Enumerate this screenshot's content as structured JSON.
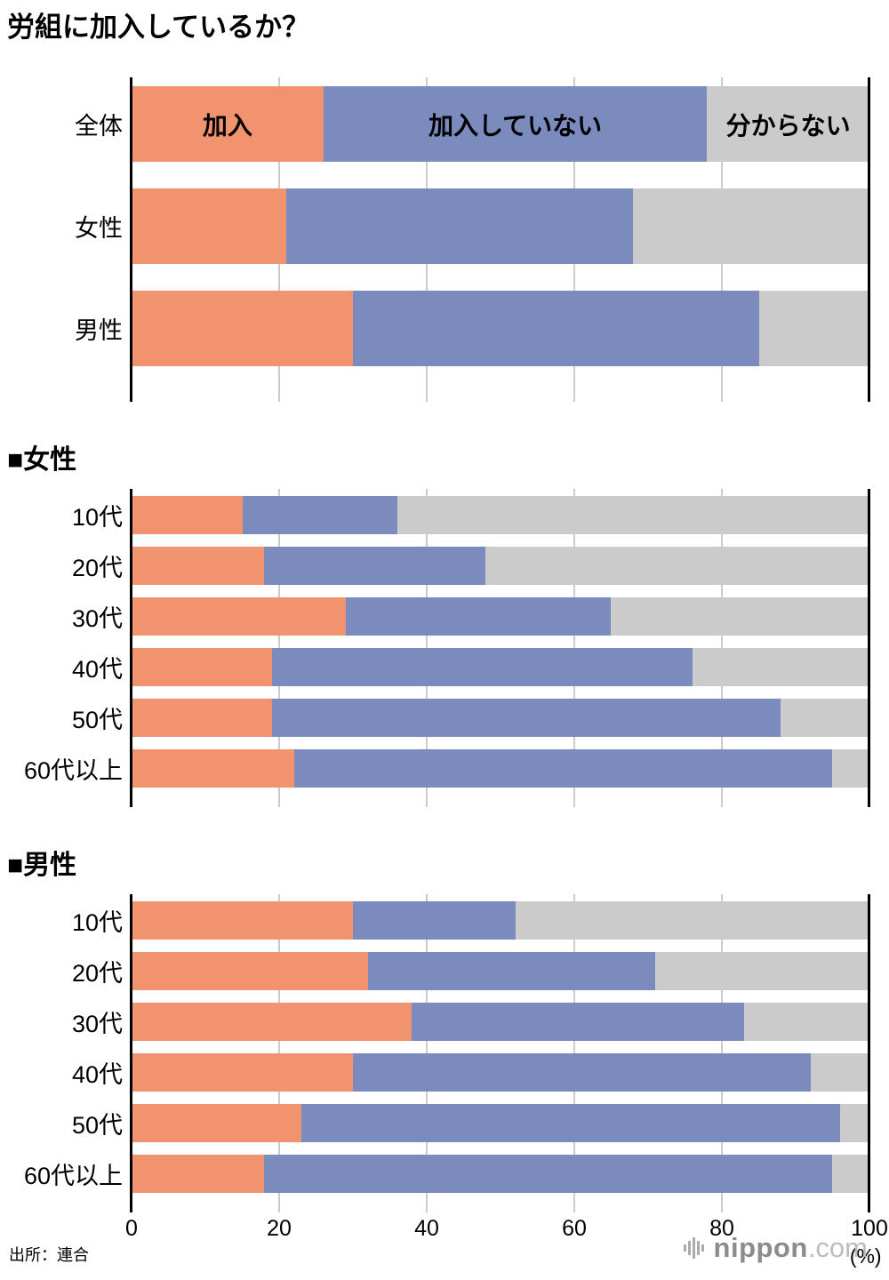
{
  "page": {
    "logo": {
      "text_main": "nippon",
      "text_suffix": ".com"
    }
  },
  "chart_data": {
    "type": "bar",
    "variant": "horizontal-stacked",
    "title": "労組に加入しているか？",
    "series": [
      "加入",
      "加入していない",
      "分からない"
    ],
    "series_keys": [
      "member",
      "not-member",
      "dont-know"
    ],
    "colors": [
      "#F0936E",
      "#7B8BBD",
      "#CBCBCB"
    ],
    "legend_position": "inside-first-bar",
    "xlim": [
      0,
      100
    ],
    "xticks": [
      "0",
      "20",
      "40",
      "60",
      "80",
      "100"
    ],
    "x_unit": "(%)",
    "grid": true,
    "source": "出所：連合",
    "groups": [
      {
        "heading": "",
        "rows": [
          {
            "label": "全体",
            "values": [
              26,
              52,
              22
            ]
          },
          {
            "label": "女性",
            "values": [
              21,
              47,
              32
            ]
          },
          {
            "label": "男性",
            "values": [
              30,
              55,
              15
            ]
          }
        ]
      },
      {
        "heading": "■女性",
        "rows": [
          {
            "label": "10代",
            "values": [
              15,
              21,
              64
            ]
          },
          {
            "label": "20代",
            "values": [
              18,
              30,
              52
            ]
          },
          {
            "label": "30代",
            "values": [
              29,
              36,
              35
            ]
          },
          {
            "label": "40代",
            "values": [
              19,
              57,
              24
            ]
          },
          {
            "label": "50代",
            "values": [
              19,
              69,
              12
            ]
          },
          {
            "label": "60代以上",
            "values": [
              22,
              73,
              5
            ]
          }
        ]
      },
      {
        "heading": "■男性",
        "rows": [
          {
            "label": "10代",
            "values": [
              30,
              22,
              48
            ]
          },
          {
            "label": "20代",
            "values": [
              32,
              39,
              29
            ]
          },
          {
            "label": "30代",
            "values": [
              38,
              45,
              17
            ]
          },
          {
            "label": "40代",
            "values": [
              30,
              62,
              8
            ]
          },
          {
            "label": "50代",
            "values": [
              23,
              73,
              4
            ]
          },
          {
            "label": "60代以上",
            "values": [
              18,
              77,
              5
            ]
          }
        ]
      }
    ]
  }
}
